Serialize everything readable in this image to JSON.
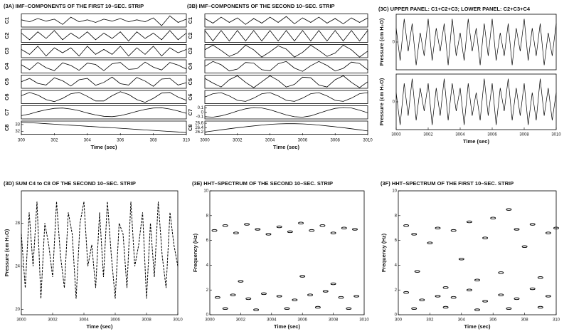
{
  "chart_data": [
    {
      "type": "strips",
      "title": "(3A) IMF–COMPONENTS OF THE FIRST 10–SEC. STRIP",
      "xlabel": "Time (sec)",
      "xlim": [
        300,
        310
      ],
      "xticks": [
        300,
        302,
        304,
        306,
        308,
        310
      ],
      "x": [
        300,
        300.5,
        301,
        301.5,
        302,
        302.5,
        303,
        303.5,
        304,
        304.5,
        305,
        305.5,
        306,
        306.5,
        307,
        307.5,
        308,
        308.5,
        309,
        309.5,
        310
      ],
      "series": [
        {
          "name": "C1",
          "ylim": [
            -1,
            1
          ],
          "values": [
            0.1,
            -0.2,
            0.3,
            -0.1,
            0.2,
            -0.6,
            0.5,
            -0.2,
            0.1,
            -0.3,
            0.2,
            -0.1,
            0.3,
            -0.2,
            0.1,
            -0.2,
            0.4,
            -0.8,
            0.7,
            -0.3,
            0.2
          ]
        },
        {
          "name": "C2",
          "ylim": [
            -5,
            5
          ],
          "values": [
            2,
            -3,
            3,
            -2,
            4,
            -3,
            2,
            -2,
            3,
            -3,
            2,
            -2,
            3,
            -4,
            3,
            -2,
            2,
            -3,
            4,
            -3,
            2
          ]
        },
        {
          "name": "C3",
          "ylim": [
            -4,
            4
          ],
          "values": [
            1,
            -2,
            3,
            -3,
            2,
            -1,
            2,
            -3,
            3,
            -2,
            1,
            -2,
            3,
            -3,
            2,
            -2,
            3,
            -3,
            2,
            -1,
            1
          ]
        },
        {
          "name": "C4",
          "ylim": [
            -2,
            2
          ],
          "values": [
            0.5,
            -1,
            1.2,
            -0.4,
            -1.3,
            1.1,
            0.3,
            -1.2,
            1,
            0.6,
            -1.3,
            0.8,
            1.2,
            -0.9,
            -0.7,
            1.3,
            -0.2,
            -1.1,
            1.2,
            0.4,
            -0.8
          ]
        },
        {
          "name": "C5",
          "ylim": [
            -2,
            2
          ],
          "values": [
            0,
            1,
            -0.5,
            -1,
            1.2,
            0.3,
            -1.3,
            0.6,
            1,
            -1.1,
            -0.2,
            1.4,
            -0.6,
            -1,
            1.3,
            0.2,
            -1.4,
            0.8,
            1,
            -1,
            -0.3
          ]
        },
        {
          "name": "C6",
          "ylim": [
            -1,
            1
          ],
          "values": [
            0.2,
            0.7,
            0.3,
            -0.4,
            -0.7,
            -0.2,
            0.5,
            0.7,
            0.1,
            -0.6,
            -0.6,
            0.2,
            0.8,
            0.4,
            -0.4,
            -0.8,
            -0.2,
            0.6,
            0.7,
            0,
            -0.5
          ]
        },
        {
          "name": "C7",
          "ylim": [
            -0.2,
            0.2
          ],
          "values": [
            -0.1,
            -0.05,
            0.02,
            0.08,
            0.12,
            0.13,
            0.1,
            0.05,
            -0.02,
            -0.08,
            -0.12,
            -0.13,
            -0.1,
            -0.04,
            0.03,
            0.09,
            0.13,
            0.14,
            0.1,
            0.04,
            -0.03
          ]
        },
        {
          "name": "C8",
          "ylim": [
            31.6,
            33.5
          ],
          "yticks": [
            32,
            33
          ],
          "values": [
            33.3,
            33.25,
            33.2,
            33.12,
            33.05,
            32.98,
            32.9,
            32.83,
            32.75,
            32.68,
            32.6,
            32.53,
            32.46,
            32.38,
            32.3,
            32.22,
            32.15,
            32.07,
            32,
            31.93,
            31.85
          ]
        }
      ]
    },
    {
      "type": "strips",
      "title": "(3B) IMF–COMPONENTS OF THE SECOND 10–SEC. STRIP",
      "xlabel": "Time (sec)",
      "xlim": [
        3000,
        3010
      ],
      "xticks": [
        3000,
        3002,
        3004,
        3006,
        3008,
        3010
      ],
      "x": [
        3000,
        3000.5,
        3001,
        3001.5,
        3002,
        3002.5,
        3003,
        3003.5,
        3004,
        3004.5,
        3005,
        3005.5,
        3006,
        3006.5,
        3007,
        3007.5,
        3008,
        3008.5,
        3009,
        3009.5,
        3010
      ],
      "series": [
        {
          "name": "C1",
          "ylim": [
            -1,
            1
          ],
          "values": [
            0.3,
            -0.4,
            0.5,
            -0.3,
            0.4,
            -0.6,
            0.3,
            -0.4,
            0.5,
            -0.3,
            0.6,
            -0.5,
            0.4,
            -0.3,
            0.5,
            -0.4,
            0.3,
            -0.5,
            0.4,
            -0.3,
            0.4
          ]
        },
        {
          "name": "C2",
          "ylim": [
            -1,
            1
          ],
          "values": [
            0.8,
            -0.8,
            0.8,
            -0.8,
            0.8,
            -0.8,
            0.8,
            -0.8,
            0.8,
            -0.8,
            0.8,
            -0.8,
            0.8,
            -0.8,
            0.8,
            -0.8,
            0.8,
            -0.8,
            0.8,
            -0.8,
            0.8
          ]
        },
        {
          "name": "C3",
          "ylim": [
            -1,
            1
          ],
          "values": [
            0.2,
            0.9,
            0.1,
            -0.8,
            -0.3,
            0.9,
            0.2,
            -0.9,
            -0.1,
            0.8,
            0.3,
            -0.9,
            -0.2,
            0.9,
            0.1,
            -0.8,
            -0.3,
            0.9,
            0.2,
            -0.9,
            0
          ]
        },
        {
          "name": "C4",
          "ylim": [
            -2,
            2
          ],
          "values": [
            0,
            1.5,
            0.5,
            -1.4,
            -0.8,
            1.2,
            1,
            -1,
            -1.3,
            0.8,
            1.5,
            -0.5,
            -1.5,
            0.2,
            1.5,
            0.3,
            -1.4,
            -0.6,
            1.3,
            0.9,
            -1
          ]
        },
        {
          "name": "C5",
          "ylim": [
            -1,
            1
          ],
          "values": [
            0.5,
            -0.2,
            -0.8,
            0.3,
            0.9,
            -0.1,
            -0.9,
            0,
            0.9,
            0.2,
            -0.8,
            -0.4,
            0.7,
            0.6,
            -0.5,
            -0.8,
            0.3,
            0.9,
            -0.1,
            -0.9,
            0
          ]
        },
        {
          "name": "C6",
          "ylim": [
            -0.6,
            0.6
          ],
          "values": [
            0,
            0.3,
            0.4,
            0.1,
            -0.3,
            -0.4,
            -0.1,
            0.3,
            0.4,
            0.1,
            -0.3,
            -0.4,
            -0.1,
            0.3,
            0.4,
            0.1,
            -0.3,
            -0.4,
            -0.1,
            0.3,
            0.4
          ]
        },
        {
          "name": "C7",
          "ylim": [
            -0.15,
            0.15
          ],
          "yticks": [
            -0.1,
            0,
            0.1
          ],
          "values": [
            -0.1,
            -0.11,
            -0.08,
            -0.03,
            0.03,
            0.08,
            0.11,
            0.1,
            0.06,
            0,
            -0.06,
            -0.1,
            -0.11,
            -0.08,
            -0.02,
            0.04,
            0.09,
            0.11,
            0.1,
            0.05,
            -0.01
          ]
        },
        {
          "name": "C8",
          "ylim": [
            26.1,
            26.7
          ],
          "yticks": [
            26.2,
            26.4,
            26.6
          ],
          "values": [
            26.2,
            26.25,
            26.3,
            26.35,
            26.4,
            26.44,
            26.48,
            26.52,
            26.55,
            26.57,
            26.58,
            26.58,
            26.57,
            26.55,
            26.52,
            26.48,
            26.44,
            26.4,
            26.35,
            26.3,
            26.25
          ]
        }
      ]
    },
    {
      "type": "panels",
      "title": "(3C) UPPER PANEL: C1+C2+C3; LOWER PANEL: C2+C3+C4",
      "xlabel": "Time (sec)",
      "ylabel": "Pressure (cm H₂O)",
      "xlim": [
        3000,
        3010
      ],
      "xticks": [
        3000,
        3002,
        3004,
        3006,
        3008,
        3010
      ],
      "x": [
        3000,
        3000.25,
        3000.5,
        3000.75,
        3001,
        3001.25,
        3001.5,
        3001.75,
        3002,
        3002.25,
        3002.5,
        3002.75,
        3003,
        3003.25,
        3003.5,
        3003.75,
        3004,
        3004.25,
        3004.5,
        3004.75,
        3005,
        3005.25,
        3005.5,
        3005.75,
        3006,
        3006.25,
        3006.5,
        3006.75,
        3007,
        3007.25,
        3007.5,
        3007.75,
        3008,
        3008.25,
        3008.5,
        3008.75,
        3009,
        3009.25,
        3009.5,
        3009.75,
        3010
      ],
      "series": [
        {
          "ylim": [
            -6,
            6
          ],
          "yticks": [
            0
          ],
          "values": [
            3,
            -4,
            5,
            -2,
            4,
            -5,
            2,
            -3,
            5,
            -4,
            3,
            -2,
            4,
            -5,
            5,
            -3,
            2,
            -4,
            5,
            -2,
            3,
            -5,
            4,
            -3,
            5,
            -4,
            2,
            -3,
            4,
            -5,
            3,
            -2,
            5,
            -4,
            3,
            -3,
            4,
            -5,
            2,
            -3,
            4
          ]
        },
        {
          "ylim": [
            -6,
            6
          ],
          "yticks": [
            0
          ],
          "values": [
            2,
            -5,
            4,
            -3,
            5,
            -4,
            3,
            -2,
            4,
            -5,
            3,
            -3,
            5,
            -4,
            4,
            -2,
            3,
            -5,
            4,
            -3,
            2,
            -4,
            5,
            -3,
            4,
            -5,
            3,
            -2,
            5,
            -4,
            3,
            -3,
            4,
            -5,
            2,
            -4,
            5,
            -3,
            3,
            -4,
            2
          ]
        }
      ]
    },
    {
      "type": "line",
      "title": "(3D) SUM C4 to C8 OF THE SECOND 10–SEC. STRIP",
      "xlabel": "Time (sec)",
      "ylabel": "Pressure (cm H₂O)",
      "xlim": [
        3000,
        3010
      ],
      "xticks": [
        3000,
        3002,
        3004,
        3006,
        3008,
        3010
      ],
      "ylim": [
        19.5,
        31
      ],
      "yticks": [
        20,
        24,
        28
      ],
      "dashed": true,
      "x": [
        3000,
        3000.25,
        3000.5,
        3000.75,
        3001,
        3001.25,
        3001.5,
        3001.75,
        3002,
        3002.25,
        3002.5,
        3002.75,
        3003,
        3003.25,
        3003.5,
        3003.75,
        3004,
        3004.25,
        3004.5,
        3004.75,
        3005,
        3005.25,
        3005.5,
        3005.75,
        3006,
        3006.25,
        3006.5,
        3006.75,
        3007,
        3007.25,
        3007.5,
        3007.75,
        3008,
        3008.25,
        3008.5,
        3008.75,
        3009,
        3009.25,
        3009.5,
        3009.75,
        3010
      ],
      "values": [
        27,
        22,
        29,
        24,
        30,
        21,
        28,
        26,
        23,
        30,
        25,
        22,
        29,
        27,
        21,
        28,
        30,
        24,
        26,
        22,
        29,
        23,
        30,
        25,
        21,
        28,
        27,
        22,
        30,
        24,
        26,
        29,
        21,
        28,
        23,
        30,
        25,
        22,
        29,
        26,
        24
      ]
    },
    {
      "type": "scatter",
      "title": "(3E) HHT–SPECTRUM OF THE SECOND 10–SEC. STRIP",
      "xlabel": "Time (sec)",
      "ylabel": "Frequency (Hz)",
      "xlim": [
        3000,
        3010
      ],
      "xticks": [
        3000,
        3002,
        3004,
        3006,
        3008,
        3010
      ],
      "ylim": [
        0,
        10
      ],
      "yticks": [
        0,
        2,
        4,
        6,
        8,
        10
      ],
      "x": [
        3000.3,
        3001,
        3001.7,
        3002.4,
        3003.1,
        3003.8,
        3004.5,
        3005.2,
        3005.9,
        3006.6,
        3007.3,
        3008,
        3008.7,
        3009.4,
        3000.5,
        3001.5,
        3002.5,
        3003.5,
        3004.5,
        3005.5,
        3006.5,
        3007.5,
        3008.5,
        3009.5,
        3001,
        3003,
        3005,
        3007,
        3009,
        3002,
        3006,
        3008
      ],
      "values": [
        6.8,
        7.2,
        6.6,
        7.3,
        6.9,
        6.5,
        7.1,
        6.7,
        7.4,
        6.8,
        7.2,
        6.6,
        7,
        6.9,
        1.4,
        1.6,
        1.3,
        1.7,
        1.5,
        1.2,
        1.6,
        1.9,
        1.4,
        1.5,
        0.5,
        0.4,
        0.5,
        0.6,
        0.5,
        2.7,
        3.1,
        2.5
      ]
    },
    {
      "type": "scatter",
      "title": "(3F) HHT–SPECTRUM OF THE FIRST 10–SEC. STRIP",
      "xlabel": "Time (sec)",
      "ylabel": "Frequency (Hz)",
      "xlim": [
        300,
        310
      ],
      "xticks": [
        300,
        302,
        304,
        306,
        308,
        310
      ],
      "ylim": [
        0,
        10
      ],
      "yticks": [
        0,
        2,
        4,
        6,
        8,
        10
      ],
      "x": [
        300.5,
        301,
        301.2,
        302,
        302.5,
        303,
        303.5,
        304,
        304.5,
        305,
        305.5,
        306,
        306.5,
        307,
        307.5,
        308,
        308.5,
        309,
        309.5,
        310,
        300.5,
        301.5,
        302.5,
        303.5,
        304.5,
        305.5,
        306.5,
        307.5,
        308.5,
        309.5,
        301,
        303,
        305,
        307,
        309
      ],
      "values": [
        7.2,
        6.5,
        3.5,
        5.8,
        7,
        2.2,
        6.8,
        4.5,
        7.5,
        2.8,
        6.2,
        7.8,
        3.4,
        8.5,
        6.9,
        5.5,
        7.3,
        3,
        6.6,
        7,
        1.8,
        1.2,
        1.5,
        1.4,
        2,
        1.1,
        1.6,
        1.3,
        2.1,
        1.5,
        0.5,
        0.6,
        0.4,
        0.5,
        0.6
      ]
    }
  ]
}
